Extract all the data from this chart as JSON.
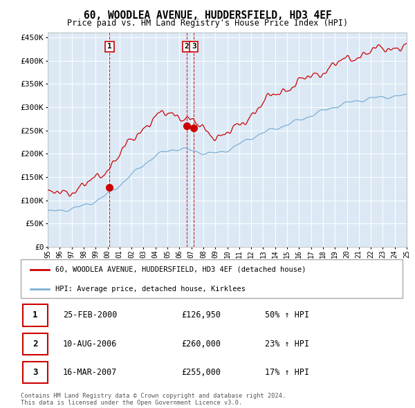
{
  "title": "60, WOODLEA AVENUE, HUDDERSFIELD, HD3 4EF",
  "subtitle": "Price paid vs. HM Land Registry's House Price Index (HPI)",
  "plot_bg_color": "#dce9f5",
  "hpi_line_color": "#7bafd4",
  "price_line_color": "#cc0000",
  "marker_color": "#cc0000",
  "dashed_line_color": "#cc0000",
  "ylim": [
    0,
    460000
  ],
  "yticks": [
    0,
    50000,
    100000,
    150000,
    200000,
    250000,
    300000,
    350000,
    400000,
    450000
  ],
  "sale_times": [
    5.17,
    11.62,
    12.21
  ],
  "sale_prices": [
    126950,
    260000,
    255000
  ],
  "sale_labels": [
    "1",
    "2",
    "3"
  ],
  "legend_label_red": "60, WOODLEA AVENUE, HUDDERSFIELD, HD3 4EF (detached house)",
  "legend_label_blue": "HPI: Average price, detached house, Kirklees",
  "table": [
    {
      "num": "1",
      "date": "25-FEB-2000",
      "price": "£126,950",
      "pct": "50% ↑ HPI"
    },
    {
      "num": "2",
      "date": "10-AUG-2006",
      "price": "£260,000",
      "pct": "23% ↑ HPI"
    },
    {
      "num": "3",
      "date": "16-MAR-2007",
      "price": "£255,000",
      "pct": "17% ↑ HPI"
    }
  ],
  "footer": "Contains HM Land Registry data © Crown copyright and database right 2024.\nThis data is licensed under the Open Government Licence v3.0."
}
